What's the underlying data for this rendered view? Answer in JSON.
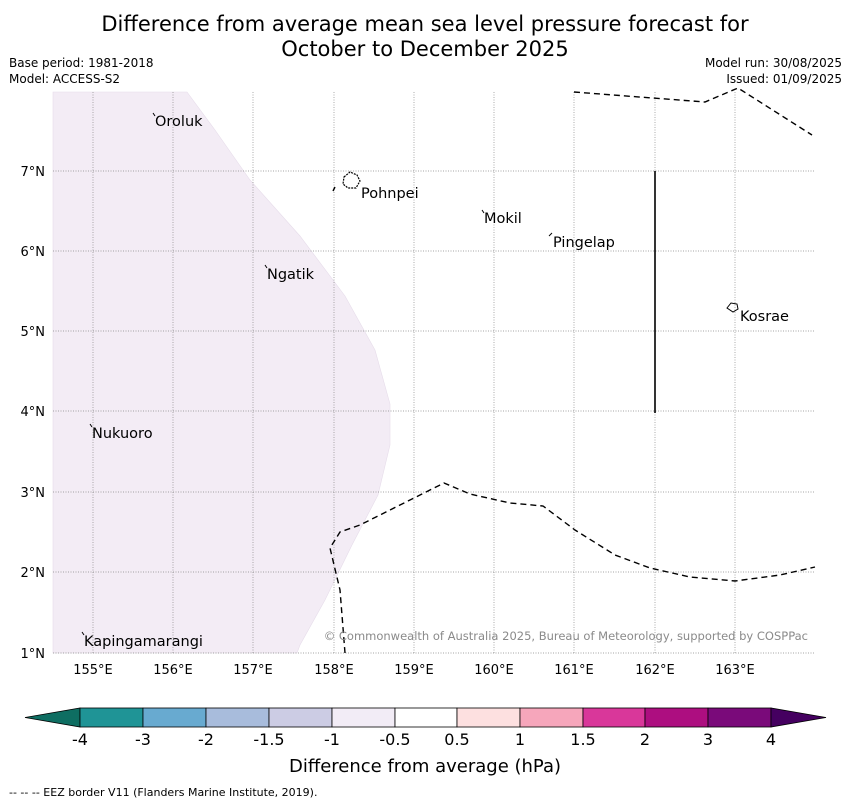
{
  "title_line1": "Difference from average mean sea level pressure forecast for",
  "title_line2": "October to December 2025",
  "base_period": "Base period: 1981-2018",
  "model": "Model: ACCESS-S2",
  "model_run": "Model run: 30/08/2025",
  "issued": "Issued: 01/09/2025",
  "copyright": "© Commonwealth of Australia 2025, Bureau of Meteorology, supported by COSPPac",
  "footnote": "--  --  -- EEZ border V11 (Flanders Marine Institute, 2019).",
  "map": {
    "lon_ticks": [
      "155°E",
      "156°E",
      "157°E",
      "158°E",
      "159°E",
      "160°E",
      "161°E",
      "162°E",
      "163°E"
    ],
    "lat_ticks": [
      "7°N",
      "6°N",
      "5°N",
      "4°N",
      "3°N",
      "2°N",
      "1°N"
    ],
    "places": [
      "Oroluk",
      "Pohnpei",
      "Mokil",
      "Pingelap",
      "Ngatik",
      "Kosrae",
      "Nukuoro",
      "Kapingamarangi"
    ]
  },
  "legend": {
    "title": "Difference from average (hPa)",
    "ticks": [
      "-4",
      "-3",
      "-2",
      "-1.5",
      "-1",
      "-0.5",
      "0.5",
      "1",
      "1.5",
      "2",
      "3",
      "4"
    ],
    "colors": [
      "#0e6e62",
      "#1f9496",
      "#68aad0",
      "#a8bcdc",
      "#ccccE4",
      "#f2ecf6",
      "#ffffff",
      "#fde0e0",
      "#f6a6bb",
      "#d9379a",
      "#ad0e80",
      "#7a0a7a",
      "#450060"
    ]
  }
}
